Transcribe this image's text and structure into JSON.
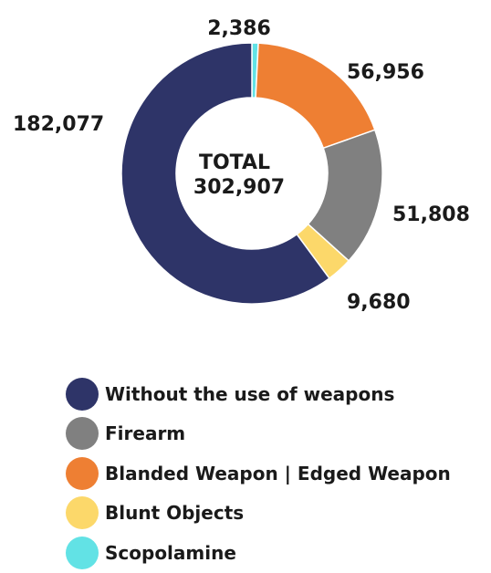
{
  "chart_data": {
    "type": "pie",
    "style": "donut",
    "center_text": [
      "TOTAL",
      "302,907"
    ],
    "categories": [
      "Scopolamine",
      "Blanded Weapon | Edged Weapon",
      "Firearm",
      "Blunt Objects",
      "Without the use of weapons"
    ],
    "values": [
      2386,
      56956,
      51808,
      9680,
      182077
    ],
    "value_labels": [
      "2,386",
      "56,956",
      "51,808",
      "9,680",
      "182,077"
    ],
    "colors": [
      "#62e2e5",
      "#ee7f33",
      "#808080",
      "#fcd86a",
      "#2e3468"
    ],
    "legend_position": "bottom"
  },
  "legend": {
    "items": [
      {
        "label": "Without the use of weapons",
        "color": "#2e3468"
      },
      {
        "label": "Firearm",
        "color": "#808080"
      },
      {
        "label": "Blanded Weapon | Edged Weapon",
        "color": "#ee7f33"
      },
      {
        "label": "Blunt Objects",
        "color": "#fcd86a"
      },
      {
        "label": "Scopolamine",
        "color": "#62e2e5"
      }
    ]
  }
}
